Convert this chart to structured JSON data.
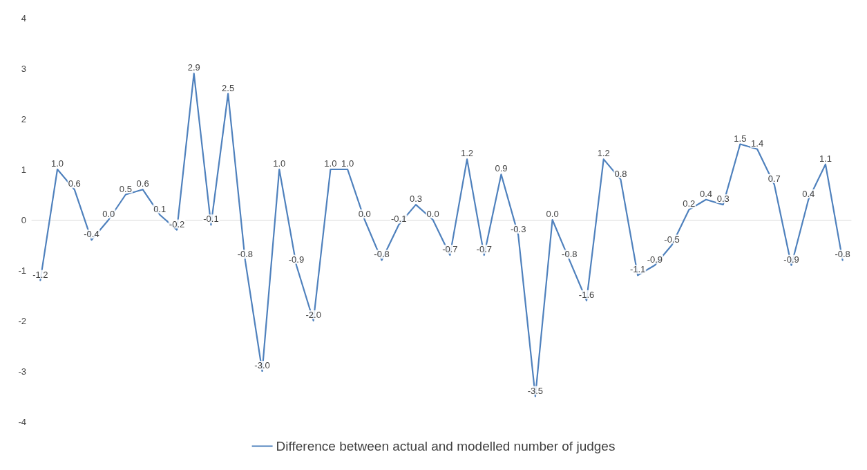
{
  "chart_data": {
    "type": "line",
    "categories": [
      null,
      null,
      null,
      null,
      null,
      null,
      null,
      null,
      null,
      null,
      null,
      null,
      null,
      null,
      null,
      null,
      null,
      null,
      null,
      null,
      null,
      null,
      null,
      null,
      null,
      null,
      null,
      null,
      null,
      null,
      null,
      null,
      null,
      null,
      null,
      null,
      null,
      null,
      null,
      null,
      null,
      null,
      null,
      null,
      null,
      null,
      null,
      null
    ],
    "series": [
      {
        "name": "Difference between actual and modelled number of judges",
        "color": "#4f81bd",
        "values": [
          -1.2,
          1.0,
          0.6,
          -0.4,
          0.0,
          0.5,
          0.6,
          0.1,
          -0.2,
          2.9,
          -0.1,
          2.5,
          -0.8,
          -3.0,
          1.0,
          -0.9,
          -2.0,
          1.0,
          1.0,
          0.0,
          -0.8,
          -0.1,
          0.3,
          0.0,
          -0.7,
          1.2,
          -0.7,
          0.9,
          -0.3,
          -3.5,
          0.0,
          -0.8,
          -1.6,
          1.2,
          0.8,
          -1.1,
          -0.9,
          -0.5,
          0.2,
          0.4,
          0.3,
          1.5,
          1.4,
          0.7,
          -0.9,
          0.4,
          1.1,
          -0.8
        ],
        "value_labels": [
          "-1.2",
          "1.0",
          "0.6",
          "-0.4",
          "0.0",
          "0.5",
          "0.6",
          "0.1",
          "-0.2",
          "2.9",
          "-0.1",
          "2.5",
          "-0.8",
          "-3.0",
          "1.0",
          "-0.9",
          "-2.0",
          "1.0",
          "1.0",
          "0.0",
          "-0.8",
          "-0.1",
          "0.3",
          "0.0",
          "-0.7",
          "1.2",
          "-0.7",
          "0.9",
          "-0.3",
          "-3.5",
          "0.0",
          "-0.8",
          "-1.6",
          "1.2",
          "0.8",
          "-1.1",
          "-0.9",
          "-0.5",
          "0.2",
          "0.4",
          "0.3",
          "1.5",
          "1.4",
          "0.7",
          "-0.9",
          "0.4",
          "1.1",
          "-0.8"
        ]
      }
    ],
    "ylim": [
      -4,
      4
    ],
    "yticks": [
      -4,
      -3,
      -2,
      -1,
      0,
      1,
      2,
      3,
      4
    ],
    "legend": "bottom",
    "marker": "none",
    "line_style": "solid"
  }
}
